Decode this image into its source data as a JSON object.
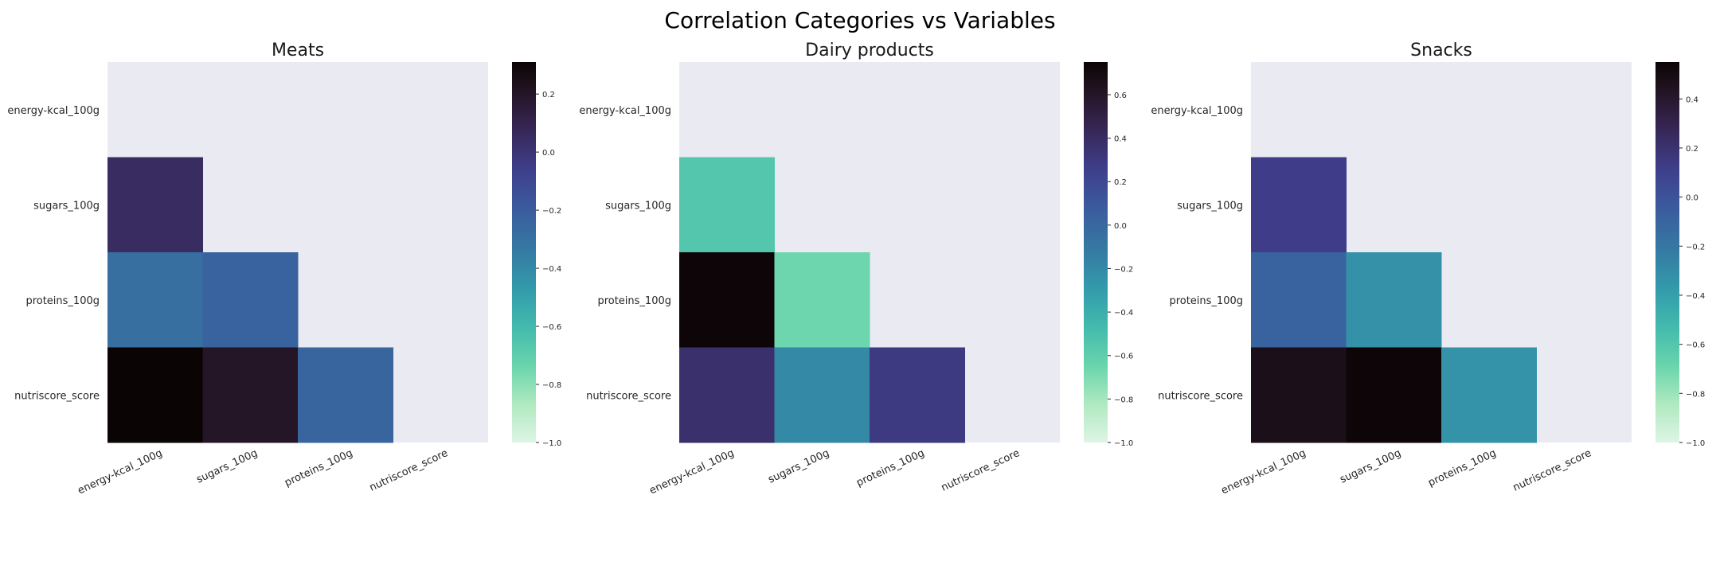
{
  "figure": {
    "title": "Correlation Categories vs Variables"
  },
  "colormap": {
    "name": "mako_r",
    "stops": [
      {
        "t": 0.0,
        "color": "#def5e5"
      },
      {
        "t": 0.1,
        "color": "#b0e9c0"
      },
      {
        "t": 0.2,
        "color": "#6ad5ad"
      },
      {
        "t": 0.3,
        "color": "#43bbad"
      },
      {
        "t": 0.4,
        "color": "#339cab"
      },
      {
        "t": 0.5,
        "color": "#357ba3"
      },
      {
        "t": 0.62,
        "color": "#3b5a9d"
      },
      {
        "t": 0.72,
        "color": "#3f3e8a"
      },
      {
        "t": 0.84,
        "color": "#35234e"
      },
      {
        "t": 0.93,
        "color": "#211320"
      },
      {
        "t": 1.0,
        "color": "#0b0405"
      }
    ],
    "mask_color": "#eaeaf2"
  },
  "chart_data": [
    {
      "type": "heatmap",
      "title": "Meats",
      "variables": [
        "energy-kcal_100g",
        "sugars_100g",
        "proteins_100g",
        "nutriscore_score"
      ],
      "x_tick_labels": [
        "energy-kcal_100g",
        "sugars_100g",
        "proteins_100g",
        "nutriscore_score"
      ],
      "y_tick_labels": [
        "energy-kcal_100g",
        "sugars_100g",
        "proteins_100g",
        "nutriscore_score"
      ],
      "mask": "upper-triangle-including-diagonal",
      "matrix": [
        [
          null,
          null,
          null,
          null
        ],
        [
          0.05,
          null,
          null,
          null
        ],
        [
          -0.29,
          -0.23,
          null,
          null
        ],
        [
          0.31,
          0.2,
          -0.24,
          null
        ]
      ],
      "vmin": -1.0,
      "vmax": 0.31,
      "colorbar_ticks": [
        0.2,
        0.0,
        -0.2,
        -0.4,
        -0.6,
        -0.8,
        -1.0
      ],
      "colorbar_tick_labels": [
        "0.2",
        "0.0",
        "−0.2",
        "−0.4",
        "−0.6",
        "−0.8",
        "−1.0"
      ]
    },
    {
      "type": "heatmap",
      "title": "Dairy products",
      "variables": [
        "energy-kcal_100g",
        "sugars_100g",
        "proteins_100g",
        "nutriscore_score"
      ],
      "x_tick_labels": [
        "energy-kcal_100g",
        "sugars_100g",
        "proteins_100g",
        "nutriscore_score"
      ],
      "y_tick_labels": [
        "energy-kcal_100g",
        "sugars_100g",
        "proteins_100g",
        "nutriscore_score"
      ],
      "mask": "upper-triangle-including-diagonal",
      "matrix": [
        [
          null,
          null,
          null,
          null
        ],
        [
          -0.55,
          null,
          null,
          null
        ],
        [
          0.74,
          -0.66,
          null,
          null
        ],
        [
          0.37,
          -0.2,
          0.29,
          null
        ]
      ],
      "vmin": -1.0,
      "vmax": 0.75,
      "colorbar_ticks": [
        0.6,
        0.4,
        0.2,
        0.0,
        -0.2,
        -0.4,
        -0.6,
        -0.8,
        -1.0
      ],
      "colorbar_tick_labels": [
        "0.6",
        "0.4",
        "0.2",
        "0.0",
        "−0.2",
        "−0.4",
        "−0.6",
        "−0.8",
        "−1.0"
      ]
    },
    {
      "type": "heatmap",
      "title": "Snacks",
      "variables": [
        "energy-kcal_100g",
        "sugars_100g",
        "proteins_100g",
        "nutriscore_score"
      ],
      "x_tick_labels": [
        "energy-kcal_100g",
        "sugars_100g",
        "proteins_100g",
        "nutriscore_score"
      ],
      "y_tick_labels": [
        "energy-kcal_100g",
        "sugars_100g",
        "proteins_100g",
        "nutriscore_score"
      ],
      "mask": "upper-triangle-including-diagonal",
      "matrix": [
        [
          null,
          null,
          null,
          null
        ],
        [
          0.12,
          null,
          null,
          null
        ],
        [
          -0.09,
          -0.33,
          null,
          null
        ],
        [
          0.47,
          0.54,
          -0.34,
          null
        ]
      ],
      "vmin": -1.0,
      "vmax": 0.55,
      "colorbar_ticks": [
        0.4,
        0.2,
        0.0,
        -0.2,
        -0.4,
        -0.6,
        -0.8,
        -1.0
      ],
      "colorbar_tick_labels": [
        "0.4",
        "0.2",
        "0.0",
        "−0.2",
        "−0.4",
        "−0.6",
        "−0.8",
        "−1.0"
      ]
    }
  ]
}
